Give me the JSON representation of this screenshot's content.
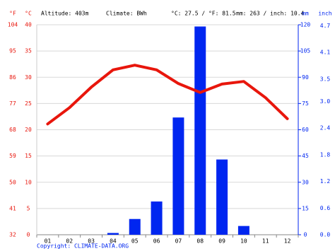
{
  "chart_data": {
    "type": "climate",
    "header": {
      "f_unit": "°F",
      "c_unit": "°C",
      "altitude": "Altitude: 403m",
      "climate": "Climate: BWh",
      "temp_avg": "°C: 27.5 / °F: 81.5",
      "precip_total": "mm: 263 / inch: 10.4",
      "mm_unit": "mm",
      "inch_unit": "inch"
    },
    "footer": "Copyright: CLIMATE-DATA.ORG",
    "categories": [
      "01",
      "02",
      "03",
      "04",
      "05",
      "06",
      "07",
      "08",
      "09",
      "10",
      "11",
      "12"
    ],
    "series": [
      {
        "type": "bar",
        "axis": "y2",
        "color": "#0026f0",
        "values": [
          0,
          0,
          0,
          1,
          9,
          19,
          67,
          119,
          43,
          5,
          0,
          0
        ]
      },
      {
        "type": "line",
        "color": "#e8160c",
        "values": [
          21.1,
          24.2,
          28.1,
          31.4,
          32.3,
          31.4,
          28.8,
          27.1,
          28.7,
          29.2,
          26.1,
          22.1
        ]
      }
    ],
    "ylim": [
      0,
      40
    ],
    "yticks": [
      0,
      5,
      10,
      15,
      20,
      25,
      30,
      35,
      40
    ],
    "y2lim": [
      0,
      120
    ],
    "y2ticks": [
      0,
      15,
      30,
      45,
      60,
      75,
      90,
      105,
      120
    ],
    "flim": [
      32,
      104
    ],
    "fticks": [
      32,
      41,
      50,
      59,
      68,
      77,
      86,
      95,
      104
    ],
    "inchlim": [
      0,
      4.724
    ],
    "inchticks": [
      {
        "value": 0,
        "label": "0.0"
      },
      0.6,
      1.2,
      1.8,
      2.4,
      {
        "value": 3,
        "label": "3.0"
      },
      3.5,
      4.1,
      4.7
    ],
    "grid": true,
    "temp_label_color": "#e8160c",
    "precip_label_color": "#0026f0"
  }
}
